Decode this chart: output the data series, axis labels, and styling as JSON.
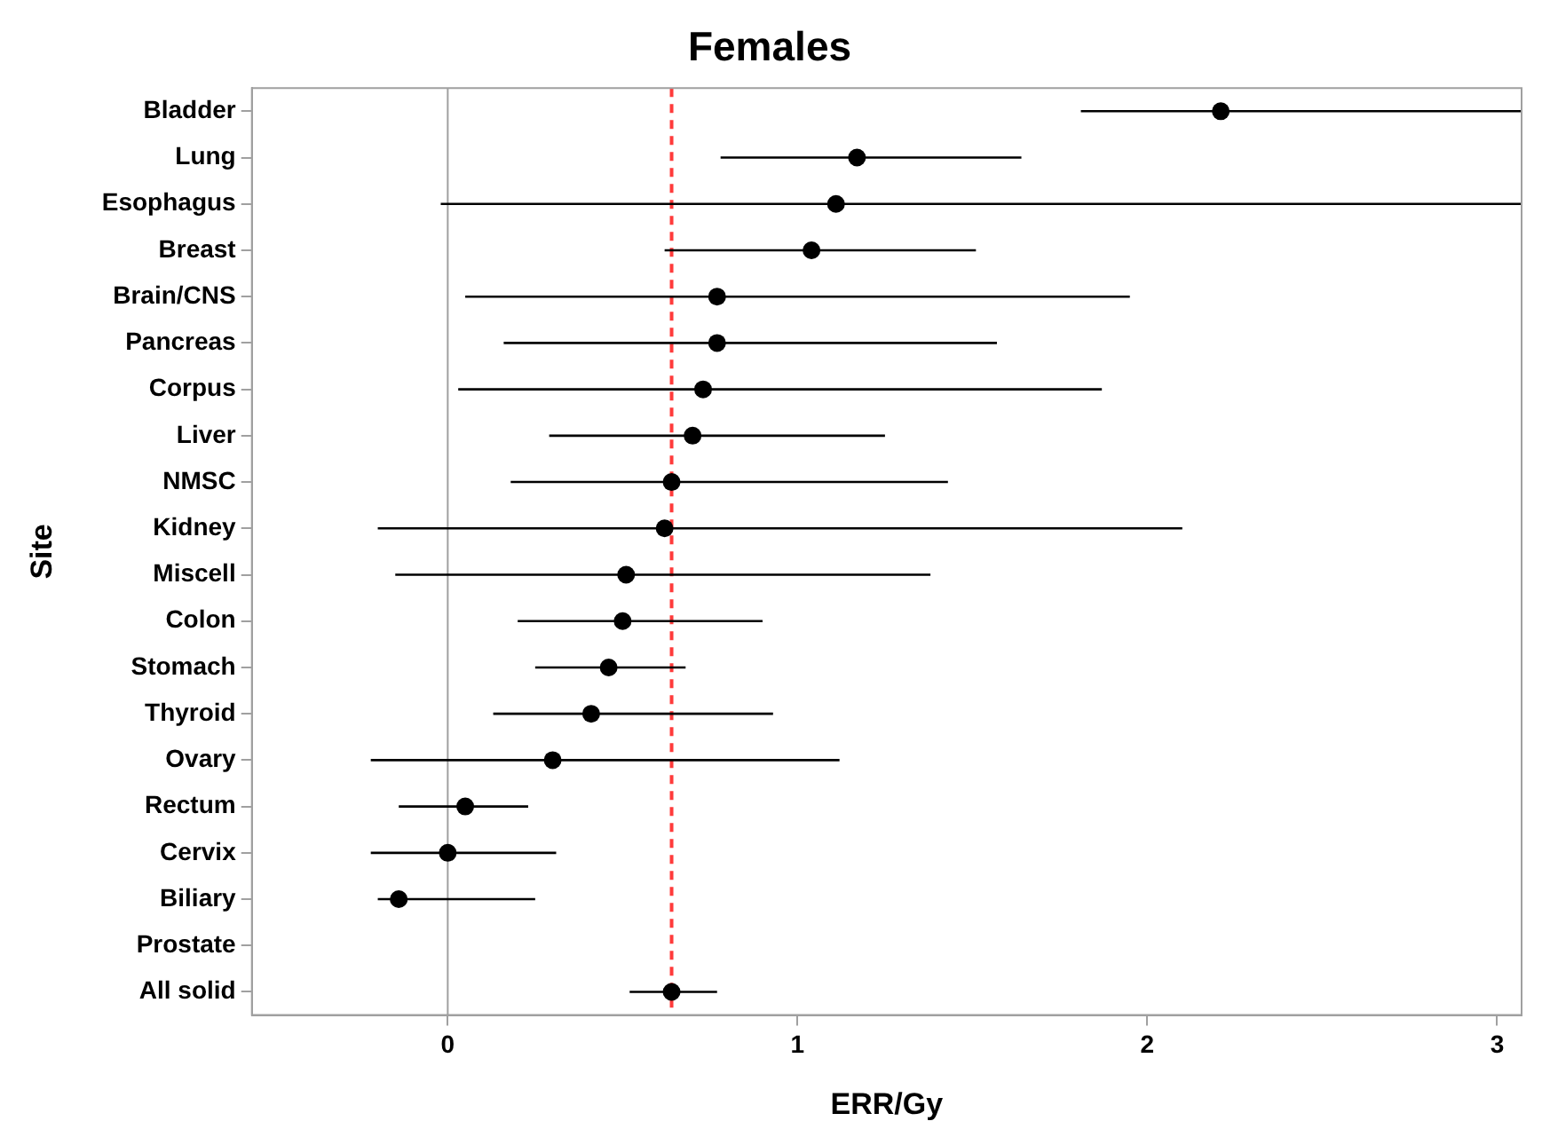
{
  "chart_data": {
    "type": "scatter",
    "orientation": "horizontal",
    "title": "Females",
    "xlabel": "ERR/Gy",
    "ylabel": "Site",
    "categories": [
      "Bladder",
      "Lung",
      "Esophagus",
      "Breast",
      "Brain/CNS",
      "Pancreas",
      "Corpus",
      "Liver",
      "NMSC",
      "Kidney",
      "Miscell",
      "Colon",
      "Stomach",
      "Thyroid",
      "Ovary",
      "Rectum",
      "Cervix",
      "Biliary",
      "Prostate",
      "All solid"
    ],
    "values": [
      2.21,
      1.17,
      1.11,
      1.04,
      0.77,
      0.77,
      0.73,
      0.7,
      0.64,
      0.62,
      0.51,
      0.5,
      0.46,
      0.41,
      0.3,
      0.05,
      0.0,
      -0.14,
      null,
      0.64
    ],
    "errors": [
      [
        1.81,
        3.07
      ],
      [
        0.78,
        1.64
      ],
      [
        -0.02,
        3.07
      ],
      [
        0.62,
        1.51
      ],
      [
        0.05,
        1.95
      ],
      [
        0.16,
        1.57
      ],
      [
        0.03,
        1.87
      ],
      [
        0.29,
        1.25
      ],
      [
        0.18,
        1.43
      ],
      [
        -0.2,
        2.1
      ],
      [
        -0.15,
        1.38
      ],
      [
        0.2,
        0.9
      ],
      [
        0.25,
        0.68
      ],
      [
        0.13,
        0.93
      ],
      [
        -0.22,
        1.12
      ],
      [
        -0.14,
        0.23
      ],
      [
        -0.22,
        0.31
      ],
      [
        -0.2,
        0.25
      ],
      null,
      [
        0.52,
        0.77
      ]
    ],
    "color": "#000000",
    "marker": "circle",
    "xlim": [
      -0.56,
      3.07
    ],
    "xticks": [
      0,
      1,
      2,
      3
    ],
    "ref_lines": [
      {
        "axis": "x",
        "value": 0,
        "color": "#a0a0a0",
        "line_style": "solid"
      },
      {
        "axis": "x",
        "value": 0.64,
        "color": "#ff3b3b",
        "line_style": "dashed"
      }
    ],
    "grid": false,
    "legend": false
  }
}
